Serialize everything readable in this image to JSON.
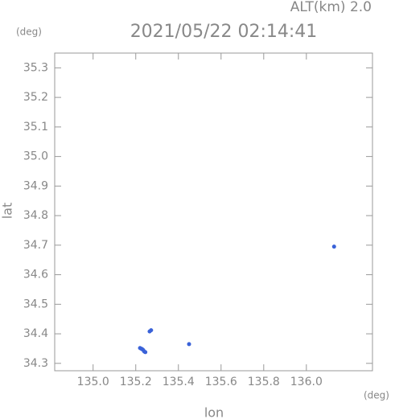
{
  "chart_data": {
    "type": "scatter",
    "title": "2021/05/22 02:14:41",
    "subtitle": "ALT(km) 2.0",
    "y_unit": "(deg)",
    "x_unit": "(deg)",
    "xlabel": "lon",
    "ylabel": "lat",
    "color": "#3a62d8",
    "x": [
      135.22,
      135.225,
      135.23,
      135.235,
      135.24,
      135.245,
      135.265,
      135.272,
      135.45,
      136.13
    ],
    "values": [
      34.352,
      34.35,
      34.348,
      34.345,
      34.34,
      34.338,
      34.408,
      34.412,
      34.365,
      34.695
    ],
    "xlim": [
      134.82,
      136.31
    ],
    "ylim": [
      34.275,
      35.35
    ],
    "xticks": [
      {
        "value": 135.0,
        "label": "135.0"
      },
      135.2,
      135.4,
      135.6,
      135.8,
      {
        "value": 136.0,
        "label": "136.0"
      }
    ],
    "yticks": [
      34.3,
      34.4,
      34.5,
      34.6,
      34.7,
      34.8,
      34.9,
      {
        "value": 35.0,
        "label": "35.0"
      },
      35.1,
      35.2,
      35.3
    ]
  }
}
